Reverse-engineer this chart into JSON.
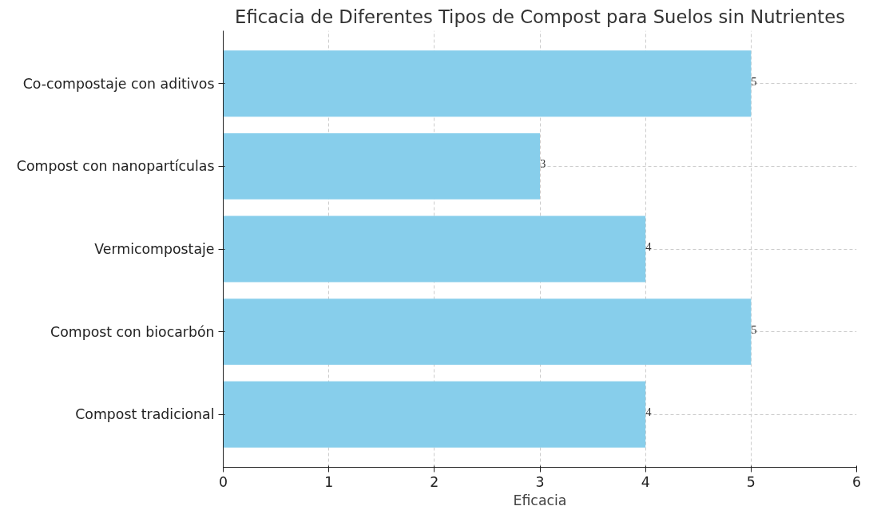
{
  "chart_data": {
    "type": "bar",
    "orientation": "horizontal",
    "title": "Eficacia de Diferentes Tipos de Compost para Suelos sin Nutrientes",
    "xlabel": "Eficacia",
    "categories": [
      "Co-compostaje con aditivos",
      "Compost con nanopartículas",
      "Vermicompostaje",
      "Compost con biocarbón",
      "Compost tradicional"
    ],
    "values": [
      5,
      3,
      4,
      5,
      4
    ],
    "color": "#87ceeb",
    "xlim": [
      0,
      6
    ],
    "xticks": [
      0,
      1,
      2,
      3,
      4,
      5,
      6
    ],
    "grid": true,
    "data_labels": true
  }
}
